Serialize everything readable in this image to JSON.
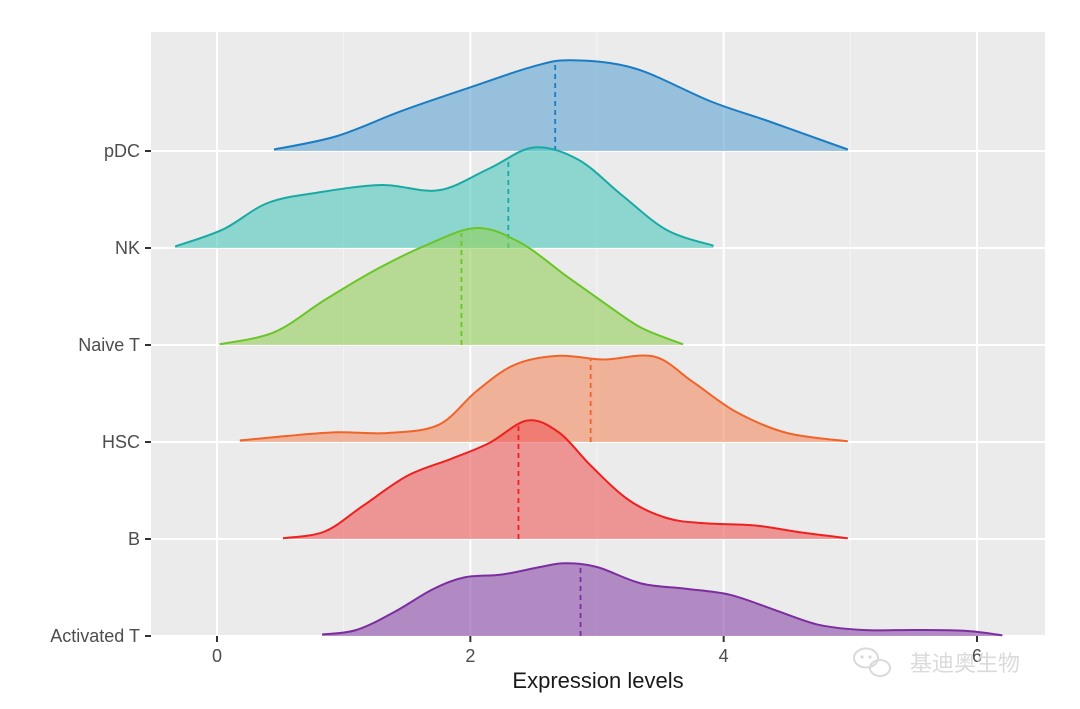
{
  "chart_data": {
    "type": "area",
    "subtype": "ridgeline",
    "title": "",
    "xlabel": "Expression levels",
    "ylabel": "",
    "xlim": [
      -0.5,
      6.55
    ],
    "x_ticks": [
      0,
      2,
      4,
      6
    ],
    "x_tick_labels": [
      "0",
      "2",
      "4",
      "6"
    ],
    "categories": [
      "Activated T",
      "B",
      "HSC",
      "Naive T",
      "NK",
      "pDC"
    ],
    "background": "#ebebeb",
    "grid": true,
    "legend": "none",
    "series": [
      {
        "name": "Activated T",
        "color": "#7b2ea0",
        "fill": "#8a4aa8",
        "median": 2.87,
        "curve": [
          [
            0.83,
            0.02
          ],
          [
            1.1,
            0.08
          ],
          [
            1.4,
            0.32
          ],
          [
            1.7,
            0.62
          ],
          [
            1.95,
            0.78
          ],
          [
            2.25,
            0.82
          ],
          [
            2.55,
            0.92
          ],
          [
            2.75,
            0.97
          ],
          [
            3.0,
            0.92
          ],
          [
            3.35,
            0.7
          ],
          [
            3.7,
            0.63
          ],
          [
            4.05,
            0.55
          ],
          [
            4.4,
            0.35
          ],
          [
            4.75,
            0.15
          ],
          [
            5.1,
            0.08
          ],
          [
            5.5,
            0.08
          ],
          [
            5.9,
            0.07
          ],
          [
            6.2,
            0.01
          ]
        ]
      },
      {
        "name": "B",
        "color": "#f02020",
        "fill": "#ee5a5a",
        "median": 2.38,
        "curve": [
          [
            0.52,
            0.01
          ],
          [
            0.85,
            0.1
          ],
          [
            1.15,
            0.44
          ],
          [
            1.5,
            0.84
          ],
          [
            1.85,
            1.07
          ],
          [
            2.15,
            1.28
          ],
          [
            2.45,
            1.58
          ],
          [
            2.7,
            1.42
          ],
          [
            2.95,
            0.98
          ],
          [
            3.25,
            0.52
          ],
          [
            3.55,
            0.28
          ],
          [
            3.85,
            0.21
          ],
          [
            4.25,
            0.18
          ],
          [
            4.6,
            0.09
          ],
          [
            4.98,
            0.01
          ]
        ]
      },
      {
        "name": "HSC",
        "color": "#f0642a",
        "fill": "#f28a60",
        "median": 2.95,
        "curve": [
          [
            0.18,
            0.02
          ],
          [
            0.55,
            0.08
          ],
          [
            0.95,
            0.13
          ],
          [
            1.35,
            0.12
          ],
          [
            1.75,
            0.23
          ],
          [
            2.05,
            0.68
          ],
          [
            2.35,
            1.03
          ],
          [
            2.7,
            1.15
          ],
          [
            3.05,
            1.1
          ],
          [
            3.45,
            1.14
          ],
          [
            3.75,
            0.81
          ],
          [
            4.1,
            0.4
          ],
          [
            4.5,
            0.12
          ],
          [
            4.98,
            0.01
          ]
        ]
      },
      {
        "name": "Naive T",
        "color": "#6ac528",
        "fill": "#93cf59",
        "median": 1.93,
        "curve": [
          [
            0.02,
            0.01
          ],
          [
            0.45,
            0.17
          ],
          [
            0.85,
            0.6
          ],
          [
            1.25,
            1.0
          ],
          [
            1.65,
            1.33
          ],
          [
            2.05,
            1.56
          ],
          [
            2.4,
            1.36
          ],
          [
            2.75,
            0.93
          ],
          [
            3.05,
            0.57
          ],
          [
            3.35,
            0.23
          ],
          [
            3.68,
            0.01
          ]
        ]
      },
      {
        "name": "NK",
        "color": "#1aa9a3",
        "fill": "#4ec8be",
        "median": 2.3,
        "curve": [
          [
            -0.33,
            0.02
          ],
          [
            0.05,
            0.25
          ],
          [
            0.4,
            0.6
          ],
          [
            0.8,
            0.74
          ],
          [
            1.3,
            0.84
          ],
          [
            1.75,
            0.77
          ],
          [
            2.15,
            1.06
          ],
          [
            2.5,
            1.34
          ],
          [
            2.85,
            1.18
          ],
          [
            3.2,
            0.7
          ],
          [
            3.55,
            0.24
          ],
          [
            3.92,
            0.03
          ]
        ]
      },
      {
        "name": "pDC",
        "color": "#1a7cc3",
        "fill": "#5da4d2",
        "median": 2.67,
        "curve": [
          [
            0.45,
            0.02
          ],
          [
            0.95,
            0.2
          ],
          [
            1.45,
            0.53
          ],
          [
            2.0,
            0.85
          ],
          [
            2.5,
            1.13
          ],
          [
            2.8,
            1.21
          ],
          [
            3.3,
            1.1
          ],
          [
            3.9,
            0.66
          ],
          [
            4.35,
            0.4
          ],
          [
            4.98,
            0.02
          ]
        ]
      }
    ]
  },
  "watermark": {
    "text": "基迪奥生物",
    "icon": "wechat-icon"
  }
}
